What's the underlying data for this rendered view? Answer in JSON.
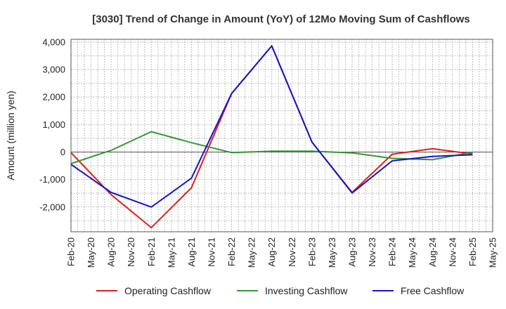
{
  "chart_data": {
    "type": "line",
    "title": "[3030]  Trend of Change in Amount (YoY) of 12Mo Moving Sum of Cashflows",
    "ylabel": "Amount (million yen)",
    "xlabel": "",
    "ylim": [
      -2900,
      4100
    ],
    "yticks": [
      4000,
      3000,
      2000,
      1000,
      0,
      -1000,
      -2000
    ],
    "ytick_labels": [
      "4,000",
      "3,000",
      "2,000",
      "1,000",
      "0",
      "-1,000",
      "-2,000"
    ],
    "categories": [
      "Feb-20",
      "May-20",
      "Aug-20",
      "Nov-20",
      "Feb-21",
      "May-21",
      "Aug-21",
      "Nov-21",
      "Feb-22",
      "May-22",
      "Aug-22",
      "Nov-22",
      "Feb-23",
      "May-23",
      "Aug-23",
      "Nov-23",
      "Feb-24",
      "May-24",
      "Aug-24",
      "Nov-24",
      "Feb-25",
      "May-25"
    ],
    "grid": true,
    "legend_position": "bottom",
    "series": [
      {
        "name": "Operating Cashflow",
        "color": "#e0201b",
        "values": [
          -20,
          null,
          -1550,
          null,
          -2750,
          null,
          -1300,
          null,
          2130,
          null,
          3860,
          null,
          360,
          null,
          -1470,
          null,
          -80,
          null,
          120,
          null,
          -70,
          null
        ]
      },
      {
        "name": "Investing Cashflow",
        "color": "#339933",
        "values": [
          -420,
          null,
          60,
          null,
          740,
          null,
          340,
          null,
          -20,
          null,
          30,
          null,
          30,
          null,
          -30,
          null,
          -230,
          null,
          -280,
          null,
          -10,
          null
        ]
      },
      {
        "name": "Free Cashflow",
        "color": "#1515c8",
        "values": [
          -450,
          null,
          -1470,
          null,
          -2000,
          null,
          -950,
          null,
          2130,
          null,
          3860,
          null,
          360,
          null,
          -1490,
          null,
          -320,
          null,
          -160,
          null,
          -100,
          null
        ]
      }
    ]
  }
}
